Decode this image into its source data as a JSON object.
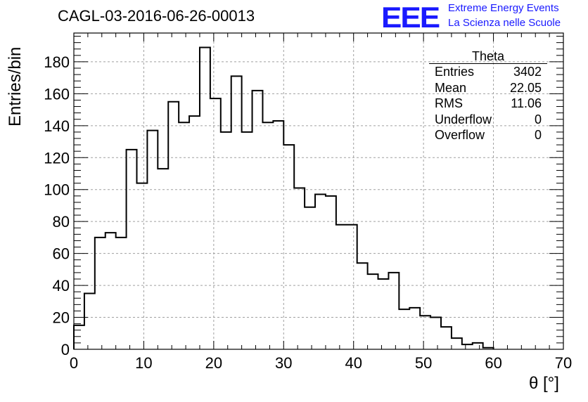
{
  "title": "CAGL-03-2016-06-26-00013",
  "logo": {
    "mark": "EEE",
    "line1": "Extreme Energy Events",
    "line2": "La Scienza nelle Scuole",
    "color": "#1a1aff"
  },
  "stats": {
    "title": "Theta",
    "rows": [
      {
        "label": "Entries",
        "value": "3402"
      },
      {
        "label": "Mean",
        "value": "22.05"
      },
      {
        "label": "RMS",
        "value": "11.06"
      },
      {
        "label": "Underflow",
        "value": "0"
      },
      {
        "label": "Overflow",
        "value": "0"
      }
    ]
  },
  "chart_data": {
    "type": "bar",
    "histogram": true,
    "xlabel": "θ [°]",
    "ylabel": "Entries/bin",
    "xlim": [
      0,
      70
    ],
    "ylim": [
      0,
      198
    ],
    "xticks": [
      0,
      10,
      20,
      30,
      40,
      50,
      60,
      70
    ],
    "yticks": [
      0,
      20,
      40,
      60,
      80,
      100,
      120,
      140,
      160,
      180
    ],
    "grid": true,
    "bin_width": 1.5,
    "bin_start": 0,
    "values": [
      15,
      35,
      70,
      73,
      70,
      125,
      104,
      137,
      113,
      155,
      142,
      146,
      189,
      157,
      136,
      171,
      136,
      162,
      142,
      143,
      128,
      101,
      89,
      97,
      96,
      78,
      78,
      54,
      47,
      44,
      48,
      25,
      26,
      21,
      20,
      14,
      7,
      3,
      4,
      1
    ]
  }
}
